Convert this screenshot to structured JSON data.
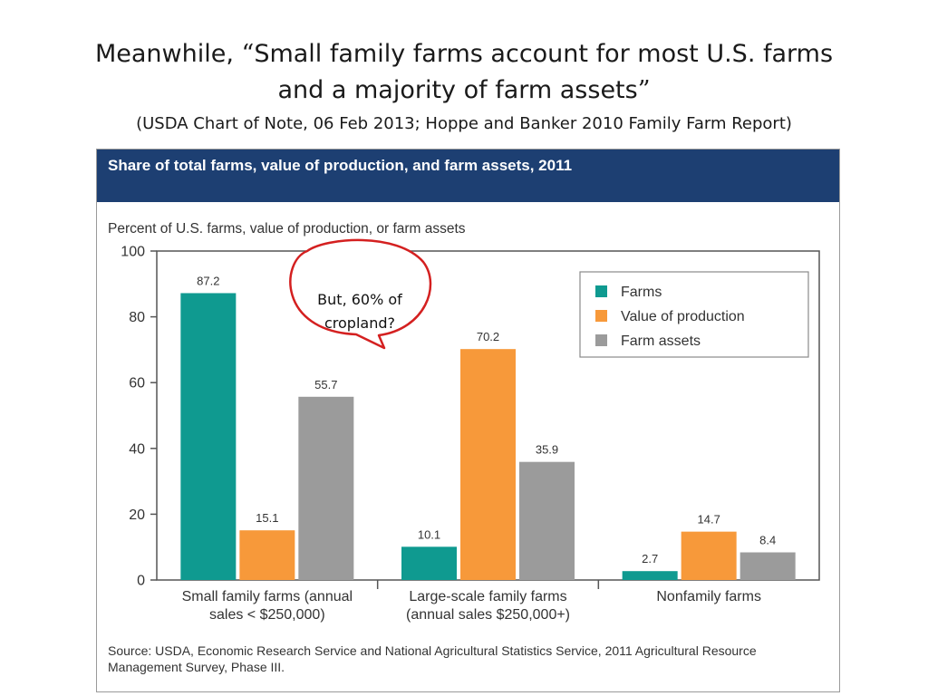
{
  "slide": {
    "title_prefix": "Meanwhile, ",
    "open_quote": "“",
    "title_line1": "Small family farms account for most U.S. farms",
    "title_line2": "and a majority of farm assets",
    "close_quote": "”",
    "subtitle": "(USDA Chart of Note, 06 Feb 2013; Hoppe and Banker 2010 Family Farm Report)"
  },
  "callout": {
    "line1": "But, 60% of",
    "line2": "cropland?",
    "color": "#d42020"
  },
  "chart_data": {
    "type": "bar",
    "title": "Share of total farms, value of production, and farm assets, 2011",
    "ylabel": "Percent of U.S. farms, value of production, or farm assets",
    "ylim": [
      0,
      100
    ],
    "yticks": [
      "0",
      "20",
      "40",
      "60",
      "80",
      "100"
    ],
    "grid": false,
    "legend_position": "top-right",
    "categories": [
      [
        "Small family farms (annual",
        "sales < $250,000)"
      ],
      [
        "Large-scale family farms",
        "(annual sales $250,000+)"
      ],
      [
        "Nonfamily farms"
      ]
    ],
    "series": [
      {
        "name": "Farms",
        "color": "#0f9a90",
        "values": [
          87.2,
          10.1,
          2.7
        ],
        "labels": [
          "87.2",
          "10.1",
          "2.7"
        ]
      },
      {
        "name": "Value of production",
        "color": "#f7993a",
        "values": [
          15.1,
          70.2,
          14.7
        ],
        "labels": [
          "15.1",
          "70.2",
          "14.7"
        ]
      },
      {
        "name": "Farm assets",
        "color": "#9b9b9b",
        "values": [
          55.7,
          35.9,
          8.4
        ],
        "labels": [
          "55.7",
          "35.9",
          "8.4"
        ]
      }
    ],
    "source": "Source: USDA, Economic Research Service and National Agricultural Statistics Service, 2011 Agricultural Resource Management Survey, Phase III."
  },
  "colors": {
    "header_bg": "#1d3f72",
    "axis": "#555555"
  }
}
